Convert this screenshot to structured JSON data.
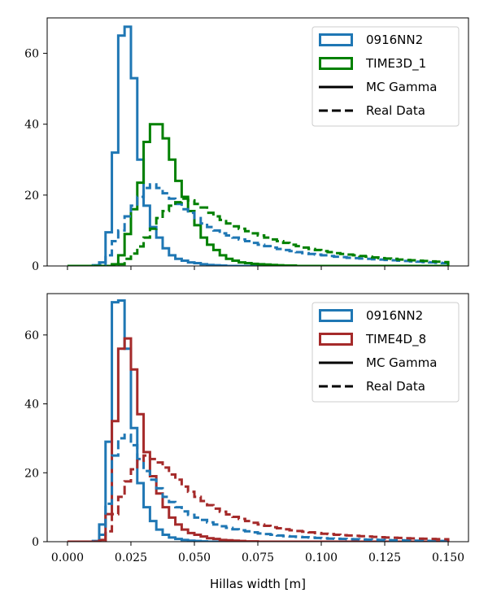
{
  "chart_data": [
    {
      "type": "step-histogram",
      "panel": "top",
      "xlabel": "",
      "ylabel": "",
      "xlim": [
        -0.008,
        0.158
      ],
      "ylim": [
        0,
        70
      ],
      "x_ticks": [
        0.0,
        0.025,
        0.05,
        0.075,
        0.1,
        0.125,
        0.15
      ],
      "x_tick_labels_shown": false,
      "y_ticks": [
        0,
        20,
        40,
        60
      ],
      "y_tick_labels": [
        "0",
        "20",
        "40",
        "60"
      ],
      "bin_edges": [
        0.0,
        0.0025,
        0.005,
        0.0075,
        0.01,
        0.0125,
        0.015,
        0.0175,
        0.02,
        0.0225,
        0.025,
        0.0275,
        0.03,
        0.0325,
        0.035,
        0.0375,
        0.04,
        0.0425,
        0.045,
        0.0475,
        0.05,
        0.0525,
        0.055,
        0.0575,
        0.06,
        0.0625,
        0.065,
        0.0675,
        0.07,
        0.0725,
        0.075,
        0.0775,
        0.08,
        0.0825,
        0.085,
        0.0875,
        0.09,
        0.0925,
        0.095,
        0.0975,
        0.1,
        0.1025,
        0.105,
        0.1075,
        0.11,
        0.1125,
        0.115,
        0.1175,
        0.12,
        0.1225,
        0.125,
        0.1275,
        0.13,
        0.1325,
        0.135,
        0.1375,
        0.14,
        0.1425,
        0.145,
        0.1475,
        0.15
      ],
      "legend": {
        "position": "upper right",
        "entries": [
          {
            "label": "0916NN2",
            "kind": "patch",
            "color": "#1f77b4"
          },
          {
            "label": "TIME3D_1",
            "kind": "patch",
            "color": "#008000"
          },
          {
            "label": "MC Gamma",
            "kind": "line",
            "linestyle": "solid",
            "color": "#000000"
          },
          {
            "label": "Real Data",
            "kind": "line",
            "linestyle": "dashed",
            "color": "#000000"
          }
        ]
      },
      "series": [
        {
          "name": "0916NN2 MC Gamma",
          "color": "#1f77b4",
          "linestyle": "solid",
          "values": [
            0,
            0,
            0,
            0,
            0.2,
            1,
            9.5,
            32,
            65,
            67.5,
            53,
            30,
            17,
            11,
            8,
            5,
            3,
            2,
            1.5,
            1,
            0.8,
            0.5,
            0.3,
            0.2,
            0.1,
            0,
            0,
            0,
            0,
            0,
            0,
            0,
            0,
            0,
            0,
            0,
            0,
            0,
            0,
            0,
            0,
            0,
            0,
            0,
            0,
            0,
            0,
            0,
            0,
            0,
            0,
            0,
            0,
            0,
            0,
            0,
            0,
            0,
            0,
            0
          ]
        },
        {
          "name": "TIME3D_1 MC Gamma",
          "color": "#008000",
          "linestyle": "solid",
          "values": [
            0,
            0,
            0,
            0,
            0,
            0,
            0,
            0.5,
            3,
            9,
            16,
            23.5,
            35,
            40,
            40,
            36,
            30,
            24,
            19.5,
            15.5,
            11.5,
            8,
            6,
            4.5,
            3,
            2,
            1.5,
            1,
            0.8,
            0.6,
            0.5,
            0.4,
            0.3,
            0.2,
            0.1,
            0.1,
            0,
            0,
            0,
            0,
            0,
            0,
            0,
            0,
            0,
            0,
            0,
            0,
            0,
            0,
            0,
            0,
            0,
            0,
            0,
            0,
            0,
            0,
            0,
            0
          ]
        },
        {
          "name": "0916NN2 Real Data",
          "color": "#1f77b4",
          "linestyle": "dashed",
          "values": [
            0,
            0,
            0,
            0,
            0.1,
            0.3,
            3,
            7,
            10,
            14,
            17,
            19.5,
            22,
            23,
            22,
            20.5,
            19,
            17.5,
            16,
            15,
            13.5,
            12,
            11,
            10,
            9.2,
            8.6,
            8,
            7.5,
            7,
            6.5,
            6,
            5.6,
            5.2,
            4.8,
            4.5,
            4.2,
            3.9,
            3.6,
            3.4,
            3.2,
            3,
            2.8,
            2.6,
            2.5,
            2.3,
            2.2,
            2.1,
            2,
            1.9,
            1.8,
            1.7,
            1.6,
            1.5,
            1.4,
            1.3,
            1.2,
            1.1,
            1.0,
            0.9,
            0.8
          ]
        },
        {
          "name": "TIME3D_1 Real Data",
          "color": "#008000",
          "linestyle": "dashed",
          "values": [
            0,
            0,
            0,
            0,
            0,
            0,
            0,
            0,
            0.5,
            2,
            3.5,
            5.5,
            8,
            10.5,
            13.5,
            15.5,
            17,
            18,
            19,
            18.5,
            17.5,
            16.5,
            15,
            14,
            13,
            12,
            11.2,
            10.5,
            9.8,
            9.2,
            8.6,
            8,
            7.5,
            7,
            6.5,
            6,
            5.6,
            5.2,
            4.8,
            4.5,
            4.2,
            3.9,
            3.6,
            3.4,
            3.2,
            3,
            2.8,
            2.6,
            2.4,
            2.2,
            2.1,
            2,
            1.8,
            1.7,
            1.6,
            1.5,
            1.4,
            1.3,
            1.2,
            1.1
          ]
        }
      ]
    },
    {
      "type": "step-histogram",
      "panel": "bottom",
      "xlabel": "Hillas width [m]",
      "ylabel": "",
      "xlim": [
        -0.008,
        0.158
      ],
      "ylim": [
        0,
        72
      ],
      "x_ticks": [
        0.0,
        0.025,
        0.05,
        0.075,
        0.1,
        0.125,
        0.15
      ],
      "x_tick_labels": [
        "0.000",
        "0.025",
        "0.050",
        "0.075",
        "0.100",
        "0.125",
        "0.150"
      ],
      "y_ticks": [
        0,
        20,
        40,
        60
      ],
      "y_tick_labels": [
        "0",
        "20",
        "40",
        "60"
      ],
      "bin_edges": [
        0.0,
        0.0025,
        0.005,
        0.0075,
        0.01,
        0.0125,
        0.015,
        0.0175,
        0.02,
        0.0225,
        0.025,
        0.0275,
        0.03,
        0.0325,
        0.035,
        0.0375,
        0.04,
        0.0425,
        0.045,
        0.0475,
        0.05,
        0.0525,
        0.055,
        0.0575,
        0.06,
        0.0625,
        0.065,
        0.0675,
        0.07,
        0.0725,
        0.075,
        0.0775,
        0.08,
        0.0825,
        0.085,
        0.0875,
        0.09,
        0.0925,
        0.095,
        0.0975,
        0.1,
        0.1025,
        0.105,
        0.1075,
        0.11,
        0.1125,
        0.115,
        0.1175,
        0.12,
        0.1225,
        0.125,
        0.1275,
        0.13,
        0.1325,
        0.135,
        0.1375,
        0.14,
        0.1425,
        0.145,
        0.1475,
        0.15
      ],
      "legend": {
        "position": "upper right",
        "entries": [
          {
            "label": "0916NN2",
            "kind": "patch",
            "color": "#1f77b4"
          },
          {
            "label": "TIME4D_8",
            "kind": "patch",
            "color": "#a52a2a"
          },
          {
            "label": "MC Gamma",
            "kind": "line",
            "linestyle": "solid",
            "color": "#000000"
          },
          {
            "label": "Real Data",
            "kind": "line",
            "linestyle": "dashed",
            "color": "#000000"
          }
        ]
      },
      "series": [
        {
          "name": "0916NN2 MC Gamma",
          "color": "#1f77b4",
          "linestyle": "solid",
          "values": [
            0,
            0,
            0,
            0,
            0.2,
            5,
            29,
            69.5,
            70,
            56,
            33,
            17,
            10,
            6,
            3.5,
            2,
            1.2,
            0.8,
            0.5,
            0.3,
            0.2,
            0.1,
            0,
            0,
            0,
            0,
            0,
            0,
            0,
            0,
            0,
            0,
            0,
            0,
            0,
            0,
            0,
            0,
            0,
            0,
            0,
            0,
            0,
            0,
            0,
            0,
            0,
            0,
            0,
            0,
            0,
            0,
            0,
            0,
            0,
            0,
            0,
            0,
            0,
            0
          ]
        },
        {
          "name": "TIME4D_8 MC Gamma",
          "color": "#a52a2a",
          "linestyle": "solid",
          "values": [
            0,
            0,
            0,
            0,
            0,
            0.5,
            8,
            35,
            56,
            59,
            50,
            37,
            26,
            19,
            14,
            10,
            7,
            5,
            3.5,
            2.5,
            2,
            1.5,
            1,
            0.8,
            0.5,
            0.4,
            0.3,
            0.2,
            0.1,
            0.1,
            0,
            0,
            0,
            0,
            0,
            0,
            0,
            0,
            0,
            0,
            0,
            0,
            0,
            0,
            0,
            0,
            0,
            0,
            0,
            0,
            0,
            0,
            0,
            0,
            0,
            0,
            0,
            0,
            0,
            0
          ]
        },
        {
          "name": "0916NN2 Real Data",
          "color": "#1f77b4",
          "linestyle": "dashed",
          "values": [
            0,
            0,
            0,
            0,
            0.1,
            2,
            11,
            25,
            30,
            31,
            28,
            24,
            20.5,
            18,
            15.5,
            13,
            11.5,
            10,
            8.8,
            7.8,
            7,
            6.3,
            5.6,
            5,
            4.5,
            4,
            3.6,
            3.3,
            3,
            2.7,
            2.4,
            2.2,
            2,
            1.8,
            1.6,
            1.5,
            1.4,
            1.3,
            1.2,
            1.1,
            1,
            0.9,
            0.85,
            0.8,
            0.75,
            0.7,
            0.65,
            0.6,
            0.55,
            0.5,
            0.45,
            0.4,
            0.4,
            0.35,
            0.3,
            0.3,
            0.25,
            0.2,
            0.2,
            0.2
          ]
        },
        {
          "name": "TIME4D_8 Real Data",
          "color": "#a52a2a",
          "linestyle": "dashed",
          "values": [
            0,
            0,
            0,
            0,
            0,
            0.3,
            3,
            8,
            13,
            17.5,
            21,
            23.5,
            25,
            24,
            23,
            21.5,
            19.5,
            18,
            16,
            14.5,
            13,
            11.8,
            10.6,
            9.6,
            8.7,
            7.9,
            7.2,
            6.6,
            6,
            5.5,
            5,
            4.6,
            4.2,
            3.9,
            3.6,
            3.3,
            3.1,
            2.9,
            2.7,
            2.5,
            2.3,
            2.2,
            2,
            1.9,
            1.8,
            1.7,
            1.6,
            1.5,
            1.4,
            1.3,
            1.2,
            1.15,
            1.1,
            1.0,
            0.95,
            0.9,
            0.85,
            0.8,
            0.75,
            0.7
          ]
        }
      ]
    }
  ]
}
